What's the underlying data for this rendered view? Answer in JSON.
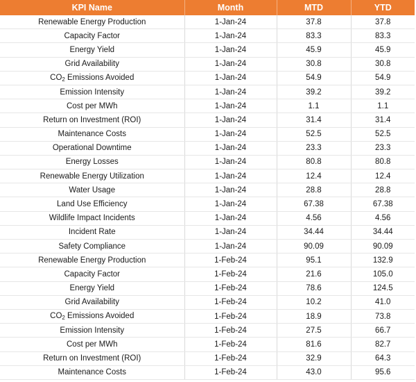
{
  "table": {
    "headers": [
      "KPI Name",
      "Month",
      "MTD",
      "YTD"
    ],
    "rows": [
      {
        "kpi": "Renewable Energy Production",
        "month": "1-Jan-24",
        "mtd": "37.8",
        "ytd": "37.8"
      },
      {
        "kpi": "Capacity Factor",
        "month": "1-Jan-24",
        "mtd": "83.3",
        "ytd": "83.3"
      },
      {
        "kpi": "Energy Yield",
        "month": "1-Jan-24",
        "mtd": "45.9",
        "ytd": "45.9"
      },
      {
        "kpi": "Grid Availability",
        "month": "1-Jan-24",
        "mtd": "30.8",
        "ytd": "30.8"
      },
      {
        "kpi": "CO2 Emissions Avoided",
        "month": "1-Jan-24",
        "mtd": "54.9",
        "ytd": "54.9"
      },
      {
        "kpi": "Emission Intensity",
        "month": "1-Jan-24",
        "mtd": "39.2",
        "ytd": "39.2"
      },
      {
        "kpi": "Cost per MWh",
        "month": "1-Jan-24",
        "mtd": "1.1",
        "ytd": "1.1"
      },
      {
        "kpi": "Return on Investment (ROI)",
        "month": "1-Jan-24",
        "mtd": "31.4",
        "ytd": "31.4"
      },
      {
        "kpi": "Maintenance Costs",
        "month": "1-Jan-24",
        "mtd": "52.5",
        "ytd": "52.5"
      },
      {
        "kpi": "Operational Downtime",
        "month": "1-Jan-24",
        "mtd": "23.3",
        "ytd": "23.3"
      },
      {
        "kpi": "Energy Losses",
        "month": "1-Jan-24",
        "mtd": "80.8",
        "ytd": "80.8"
      },
      {
        "kpi": "Renewable Energy Utilization",
        "month": "1-Jan-24",
        "mtd": "12.4",
        "ytd": "12.4"
      },
      {
        "kpi": "Water Usage",
        "month": "1-Jan-24",
        "mtd": "28.8",
        "ytd": "28.8"
      },
      {
        "kpi": "Land Use Efficiency",
        "month": "1-Jan-24",
        "mtd": "67.38",
        "ytd": "67.38"
      },
      {
        "kpi": "Wildlife Impact Incidents",
        "month": "1-Jan-24",
        "mtd": "4.56",
        "ytd": "4.56"
      },
      {
        "kpi": "Incident Rate",
        "month": "1-Jan-24",
        "mtd": "34.44",
        "ytd": "34.44"
      },
      {
        "kpi": "Safety Compliance",
        "month": "1-Jan-24",
        "mtd": "90.09",
        "ytd": "90.09"
      },
      {
        "kpi": "Renewable Energy Production",
        "month": "1-Feb-24",
        "mtd": "95.1",
        "ytd": "132.9"
      },
      {
        "kpi": "Capacity Factor",
        "month": "1-Feb-24",
        "mtd": "21.6",
        "ytd": "105.0"
      },
      {
        "kpi": "Energy Yield",
        "month": "1-Feb-24",
        "mtd": "78.6",
        "ytd": "124.5"
      },
      {
        "kpi": "Grid Availability",
        "month": "1-Feb-24",
        "mtd": "10.2",
        "ytd": "41.0"
      },
      {
        "kpi": "CO2 Emissions Avoided",
        "month": "1-Feb-24",
        "mtd": "18.9",
        "ytd": "73.8"
      },
      {
        "kpi": "Emission Intensity",
        "month": "1-Feb-24",
        "mtd": "27.5",
        "ytd": "66.7"
      },
      {
        "kpi": "Cost per MWh",
        "month": "1-Feb-24",
        "mtd": "81.6",
        "ytd": "82.7"
      },
      {
        "kpi": "Return on Investment (ROI)",
        "month": "1-Feb-24",
        "mtd": "32.9",
        "ytd": "64.3"
      },
      {
        "kpi": "Maintenance Costs",
        "month": "1-Feb-24",
        "mtd": "43.0",
        "ytd": "95.6"
      }
    ]
  },
  "colors": {
    "header_bg": "#ED7D31",
    "header_text": "#FFFFFF",
    "grid": "#D9D9D9"
  }
}
